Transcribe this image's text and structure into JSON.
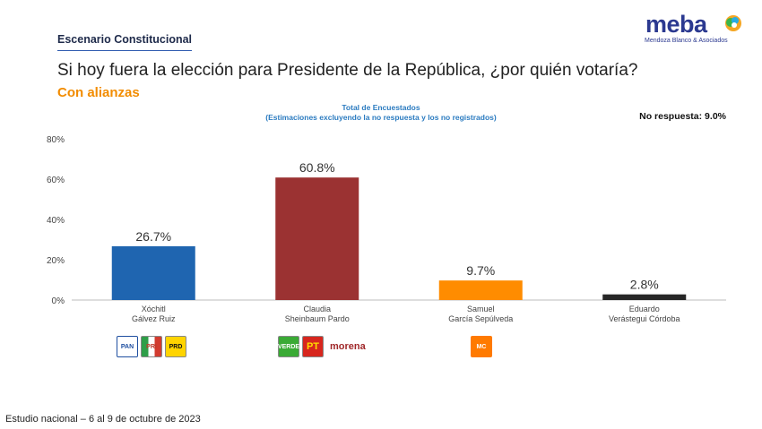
{
  "header": {
    "section": "Escenario Constitucional",
    "question": "Si hoy fuera la elección para Presidente de la República, ¿por quién votaría?",
    "subtitle": "Con alianzas",
    "chart_title_line1": "Total de Encuestados",
    "chart_title_line2": "(Estimaciones excluyendo la no respuesta y los no registrados)",
    "no_response": "No respuesta: 9.0%"
  },
  "logo": {
    "name": "meba",
    "tagline": "Mendoza Blanco & Asociados"
  },
  "footer": {
    "text": "Estudio nacional – 6 al 9 de octubre de 2023"
  },
  "parties": {
    "xochitl": [
      "PAN",
      "PRI",
      "PRD"
    ],
    "claudia": [
      "VERDE",
      "PT",
      "morena"
    ],
    "samuel": [
      "MC"
    ]
  },
  "colors": {
    "xochitl": "#1f65b0",
    "claudia": "#9b3232",
    "samuel": "#ff8c00",
    "eduardo": "#262626",
    "accent": "#f28c00"
  },
  "chart_data": {
    "type": "bar",
    "categories": [
      "Xóchitl\nGálvez Ruiz",
      "Claudia\nSheinbaum Pardo",
      "Samuel\nGarcía Sepúlveda",
      "Eduardo\nVerástegui Córdoba"
    ],
    "values": [
      26.7,
      60.8,
      9.7,
      2.8
    ],
    "value_labels": [
      "26.7%",
      "60.8%",
      "9.7%",
      "2.8%"
    ],
    "colors": [
      "#1f65b0",
      "#9b3232",
      "#ff8c00",
      "#262626"
    ],
    "yticks": [
      "0%",
      "20%",
      "40%",
      "60%",
      "80%"
    ],
    "ylim": [
      0,
      80
    ],
    "grid": false,
    "title": "Total de Encuestados"
  }
}
